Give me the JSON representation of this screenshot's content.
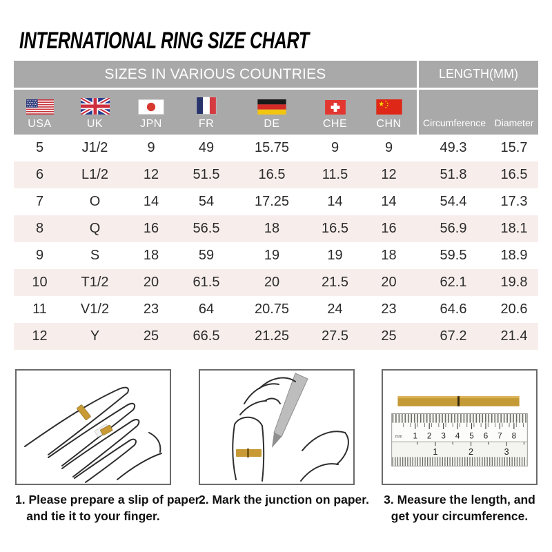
{
  "title": "INTERNATIONAL RING SIZE CHART",
  "chart_data": {
    "type": "table",
    "title": "INTERNATIONAL RING SIZE CHART",
    "column_groups": [
      {
        "label": "SIZES IN VARIOUS COUNTRIES",
        "span": 7
      },
      {
        "label": "LENGTH(MM)",
        "span": 2
      }
    ],
    "columns": [
      "USA",
      "UK",
      "JPN",
      "FR",
      "DE",
      "CHE",
      "CHN",
      "Circumference",
      "Diameter"
    ],
    "flag_icons": [
      "usa-flag-icon",
      "uk-flag-icon",
      "japan-flag-icon",
      "france-flag-icon",
      "germany-flag-icon",
      "switzerland-flag-icon",
      "china-flag-icon"
    ],
    "rows": [
      [
        "5",
        "J1/2",
        "9",
        "49",
        "15.75",
        "9",
        "9",
        "49.3",
        "15.7"
      ],
      [
        "6",
        "L1/2",
        "12",
        "51.5",
        "16.5",
        "11.5",
        "12",
        "51.8",
        "16.5"
      ],
      [
        "7",
        "O",
        "14",
        "54",
        "17.25",
        "14",
        "14",
        "54.4",
        "17.3"
      ],
      [
        "8",
        "Q",
        "16",
        "56.5",
        "18",
        "16.5",
        "16",
        "56.9",
        "18.1"
      ],
      [
        "9",
        "S",
        "18",
        "59",
        "19",
        "19",
        "18",
        "59.5",
        "18.9"
      ],
      [
        "10",
        "T1/2",
        "20",
        "61.5",
        "20",
        "21.5",
        "20",
        "62.1",
        "19.8"
      ],
      [
        "11",
        "V1/2",
        "23",
        "64",
        "20.75",
        "24",
        "23",
        "64.6",
        "20.6"
      ],
      [
        "12",
        "Y",
        "25",
        "66.5",
        "21.25",
        "27.5",
        "25",
        "67.2",
        "21.4"
      ]
    ],
    "row_striping": {
      "odd": "#ffffff",
      "even": "#f7eeec"
    }
  },
  "instructions": [
    {
      "illustration": "hand-with-paper-slip",
      "lines": [
        "1. Please prepare a slip of paper",
        "and tie it to your finger."
      ]
    },
    {
      "illustration": "marking-pen-on-finger",
      "lines": [
        "2. Mark the junction on paper."
      ]
    },
    {
      "illustration": "ruler-measuring-strip",
      "lines": [
        "3. Measure the length, and",
        "get your circumference."
      ],
      "ruler": {
        "unit_label": "mm",
        "cm_labels": [
          "1",
          "2",
          "3",
          "4",
          "5",
          "6",
          "7",
          "8"
        ],
        "inch_labels": [
          "1",
          "2",
          "3"
        ]
      }
    }
  ],
  "colors": {
    "header_bg": "#a9a9a9",
    "header_text": "#ffffff",
    "row_alt_bg": "#f7eeec",
    "paper_gold": "#c49a36",
    "title_color": "#000000"
  }
}
